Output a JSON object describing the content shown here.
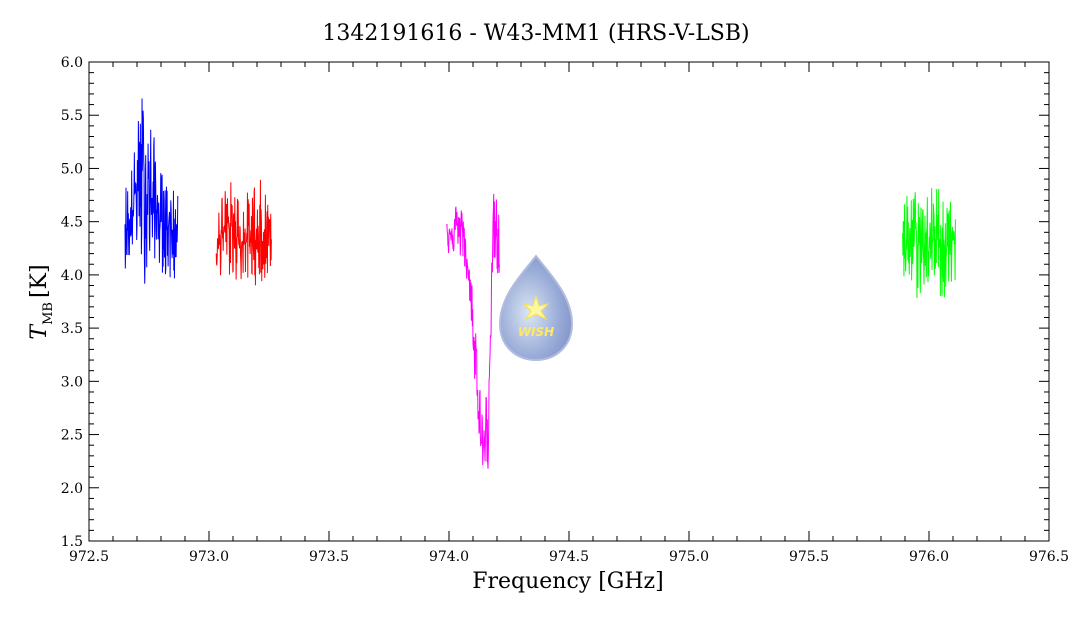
{
  "chart_data": {
    "type": "line",
    "title": "1342191616 - W43-MM1 (HRS-V-LSB)",
    "xlabel": "Frequency [GHz]",
    "ylabel_main": "T",
    "ylabel_sub": "MB",
    "ylabel_unit": "[K]",
    "xlim": [
      972.5,
      976.5
    ],
    "ylim": [
      1.5,
      6.0
    ],
    "xticks": [
      "972.5",
      "973.0",
      "973.5",
      "974.0",
      "974.5",
      "975.0",
      "975.5",
      "976.0",
      "976.5"
    ],
    "yticks": [
      "1.5",
      "2.0",
      "2.5",
      "3.0",
      "3.5",
      "4.0",
      "4.5",
      "5.0",
      "5.5",
      "6.0"
    ],
    "grid": false,
    "series": [
      {
        "color": "#0000ff",
        "points": [
          [
            972.65,
            4.55
          ],
          [
            972.67,
            4.35
          ],
          [
            972.69,
            4.75
          ],
          [
            972.71,
            4.95
          ],
          [
            972.73,
            4.85
          ],
          [
            972.75,
            4.75
          ],
          [
            972.77,
            4.65
          ],
          [
            972.79,
            4.55
          ],
          [
            972.81,
            4.45
          ],
          [
            972.83,
            4.5
          ],
          [
            972.85,
            4.4
          ],
          [
            972.87,
            4.45
          ]
        ],
        "min": [
          [
            972.65,
            4.05
          ],
          [
            972.69,
            4.25
          ],
          [
            972.73,
            3.9
          ],
          [
            972.77,
            4.15
          ],
          [
            972.81,
            4.0
          ],
          [
            972.85,
            3.85
          ],
          [
            972.87,
            4.05
          ]
        ],
        "max": [
          [
            972.65,
            4.85
          ],
          [
            972.69,
            5.2
          ],
          [
            972.72,
            5.75
          ],
          [
            972.75,
            5.6
          ],
          [
            972.79,
            5.05
          ],
          [
            972.83,
            4.85
          ],
          [
            972.87,
            4.75
          ]
        ]
      },
      {
        "color": "#ff0000",
        "points": [
          [
            973.03,
            4.35
          ],
          [
            973.06,
            4.4
          ],
          [
            973.09,
            4.45
          ],
          [
            973.12,
            4.35
          ],
          [
            973.15,
            4.3
          ],
          [
            973.18,
            4.35
          ],
          [
            973.21,
            4.3
          ],
          [
            973.24,
            4.35
          ],
          [
            973.26,
            4.4
          ]
        ],
        "min": [
          [
            973.03,
            4.0
          ],
          [
            973.09,
            3.95
          ],
          [
            973.15,
            3.9
          ],
          [
            973.21,
            3.9
          ],
          [
            973.26,
            4.0
          ]
        ],
        "max": [
          [
            973.03,
            4.75
          ],
          [
            973.09,
            4.9
          ],
          [
            973.15,
            4.75
          ],
          [
            973.2,
            4.95
          ],
          [
            973.26,
            4.75
          ]
        ]
      },
      {
        "color": "#ff00ff",
        "points": [
          [
            973.99,
            4.4
          ],
          [
            974.02,
            4.45
          ],
          [
            974.05,
            4.45
          ],
          [
            974.07,
            4.3
          ],
          [
            974.08,
            4.0
          ],
          [
            974.09,
            3.7
          ],
          [
            974.1,
            3.4
          ],
          [
            974.11,
            3.1
          ],
          [
            974.12,
            2.8
          ],
          [
            974.13,
            2.5
          ],
          [
            974.14,
            2.35
          ],
          [
            974.15,
            2.4
          ],
          [
            974.16,
            2.6
          ],
          [
            974.17,
            3.2
          ],
          [
            974.18,
            4.2
          ],
          [
            974.19,
            4.45
          ],
          [
            974.2,
            4.3
          ],
          [
            974.21,
            4.1
          ]
        ],
        "min": [
          [
            973.99,
            4.2
          ],
          [
            974.05,
            4.15
          ],
          [
            974.08,
            3.85
          ],
          [
            974.1,
            3.2
          ],
          [
            974.12,
            2.6
          ],
          [
            974.14,
            2.2
          ],
          [
            974.16,
            1.9
          ],
          [
            974.17,
            2.8
          ],
          [
            974.18,
            3.95
          ],
          [
            974.2,
            3.85
          ],
          [
            974.21,
            3.7
          ]
        ],
        "max": [
          [
            973.99,
            4.7
          ],
          [
            974.03,
            4.7
          ],
          [
            974.06,
            4.6
          ],
          [
            974.08,
            4.25
          ],
          [
            974.1,
            3.9
          ],
          [
            974.12,
            3.5
          ],
          [
            974.14,
            2.75
          ],
          [
            974.16,
            3.0
          ],
          [
            974.17,
            3.8
          ],
          [
            974.18,
            4.75
          ],
          [
            974.19,
            4.8
          ],
          [
            974.21,
            4.6
          ]
        ]
      },
      {
        "color": "#00ff00",
        "points": [
          [
            975.89,
            4.3
          ],
          [
            975.92,
            4.35
          ],
          [
            975.95,
            4.3
          ],
          [
            975.98,
            4.25
          ],
          [
            976.01,
            4.3
          ],
          [
            976.04,
            4.35
          ],
          [
            976.07,
            4.25
          ],
          [
            976.1,
            4.3
          ],
          [
            976.11,
            4.3
          ]
        ],
        "min": [
          [
            975.89,
            3.9
          ],
          [
            975.95,
            3.75
          ],
          [
            976.01,
            3.9
          ],
          [
            976.07,
            3.7
          ],
          [
            976.11,
            3.95
          ]
        ],
        "max": [
          [
            975.89,
            4.75
          ],
          [
            975.95,
            4.85
          ],
          [
            976.01,
            4.85
          ],
          [
            976.06,
            4.9
          ],
          [
            976.11,
            4.6
          ]
        ]
      }
    ]
  },
  "logo": {
    "text": "WISH"
  }
}
